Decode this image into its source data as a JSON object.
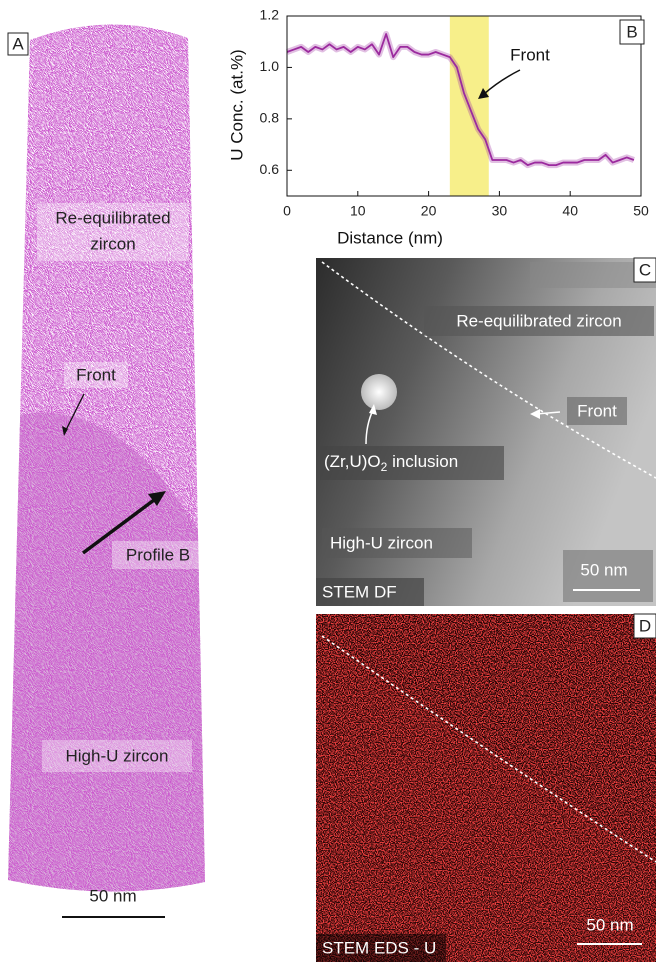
{
  "chart_data": {
    "type": "line",
    "panel_label": "B",
    "x_label": "Distance (nm)",
    "y_label": "U Conc. (at.%)",
    "x": [
      0,
      1,
      2,
      3,
      4,
      5,
      6,
      7,
      8,
      9,
      10,
      11,
      12,
      13,
      14,
      15,
      16,
      17,
      18,
      19,
      20,
      21,
      22,
      23,
      24,
      25,
      26,
      27,
      28,
      29,
      30,
      31,
      32,
      33,
      34,
      35,
      36,
      37,
      38,
      39,
      40,
      41,
      42,
      43,
      44,
      45,
      46,
      47,
      48,
      49
    ],
    "values": [
      1.06,
      1.07,
      1.08,
      1.06,
      1.08,
      1.07,
      1.09,
      1.07,
      1.08,
      1.06,
      1.08,
      1.07,
      1.09,
      1.05,
      1.13,
      1.04,
      1.08,
      1.08,
      1.06,
      1.05,
      1.05,
      1.06,
      1.05,
      1.04,
      1.0,
      0.9,
      0.83,
      0.76,
      0.72,
      0.64,
      0.64,
      0.64,
      0.63,
      0.64,
      0.62,
      0.63,
      0.63,
      0.62,
      0.62,
      0.63,
      0.63,
      0.63,
      0.64,
      0.64,
      0.64,
      0.66,
      0.63,
      0.64,
      0.65,
      0.64
    ],
    "color": "#9b2a9e",
    "highlight": [
      23,
      28.5
    ],
    "highlight_color": "#f7ef8a",
    "annotation": "Front",
    "xlim": [
      0,
      50
    ],
    "xticks": [
      0,
      10,
      20,
      30,
      40,
      50
    ],
    "ylim": [
      0.5,
      1.2
    ],
    "yticks": [
      0.6,
      0.8,
      {
        "value": 1,
        "label": "1.0"
      },
      1.2
    ]
  },
  "panels": {
    "A": {
      "label": "A",
      "region_top": [
        "Re-equilibrated",
        "zircon"
      ],
      "front": "Front",
      "profile": "Profile B",
      "region_bottom": "High-U zircon",
      "scale": "50 nm"
    },
    "C": {
      "label": "C",
      "region_top": "Re-equilibrated zircon",
      "front": "Front",
      "inclusion": [
        "(Zr,U)O",
        "2",
        " inclusion"
      ],
      "region_bottom": "High-U zircon",
      "scale": "50 nm",
      "mode": "STEM DF"
    },
    "D": {
      "label": "D",
      "scale": "50 nm",
      "mode": "STEM EDS - U"
    }
  }
}
